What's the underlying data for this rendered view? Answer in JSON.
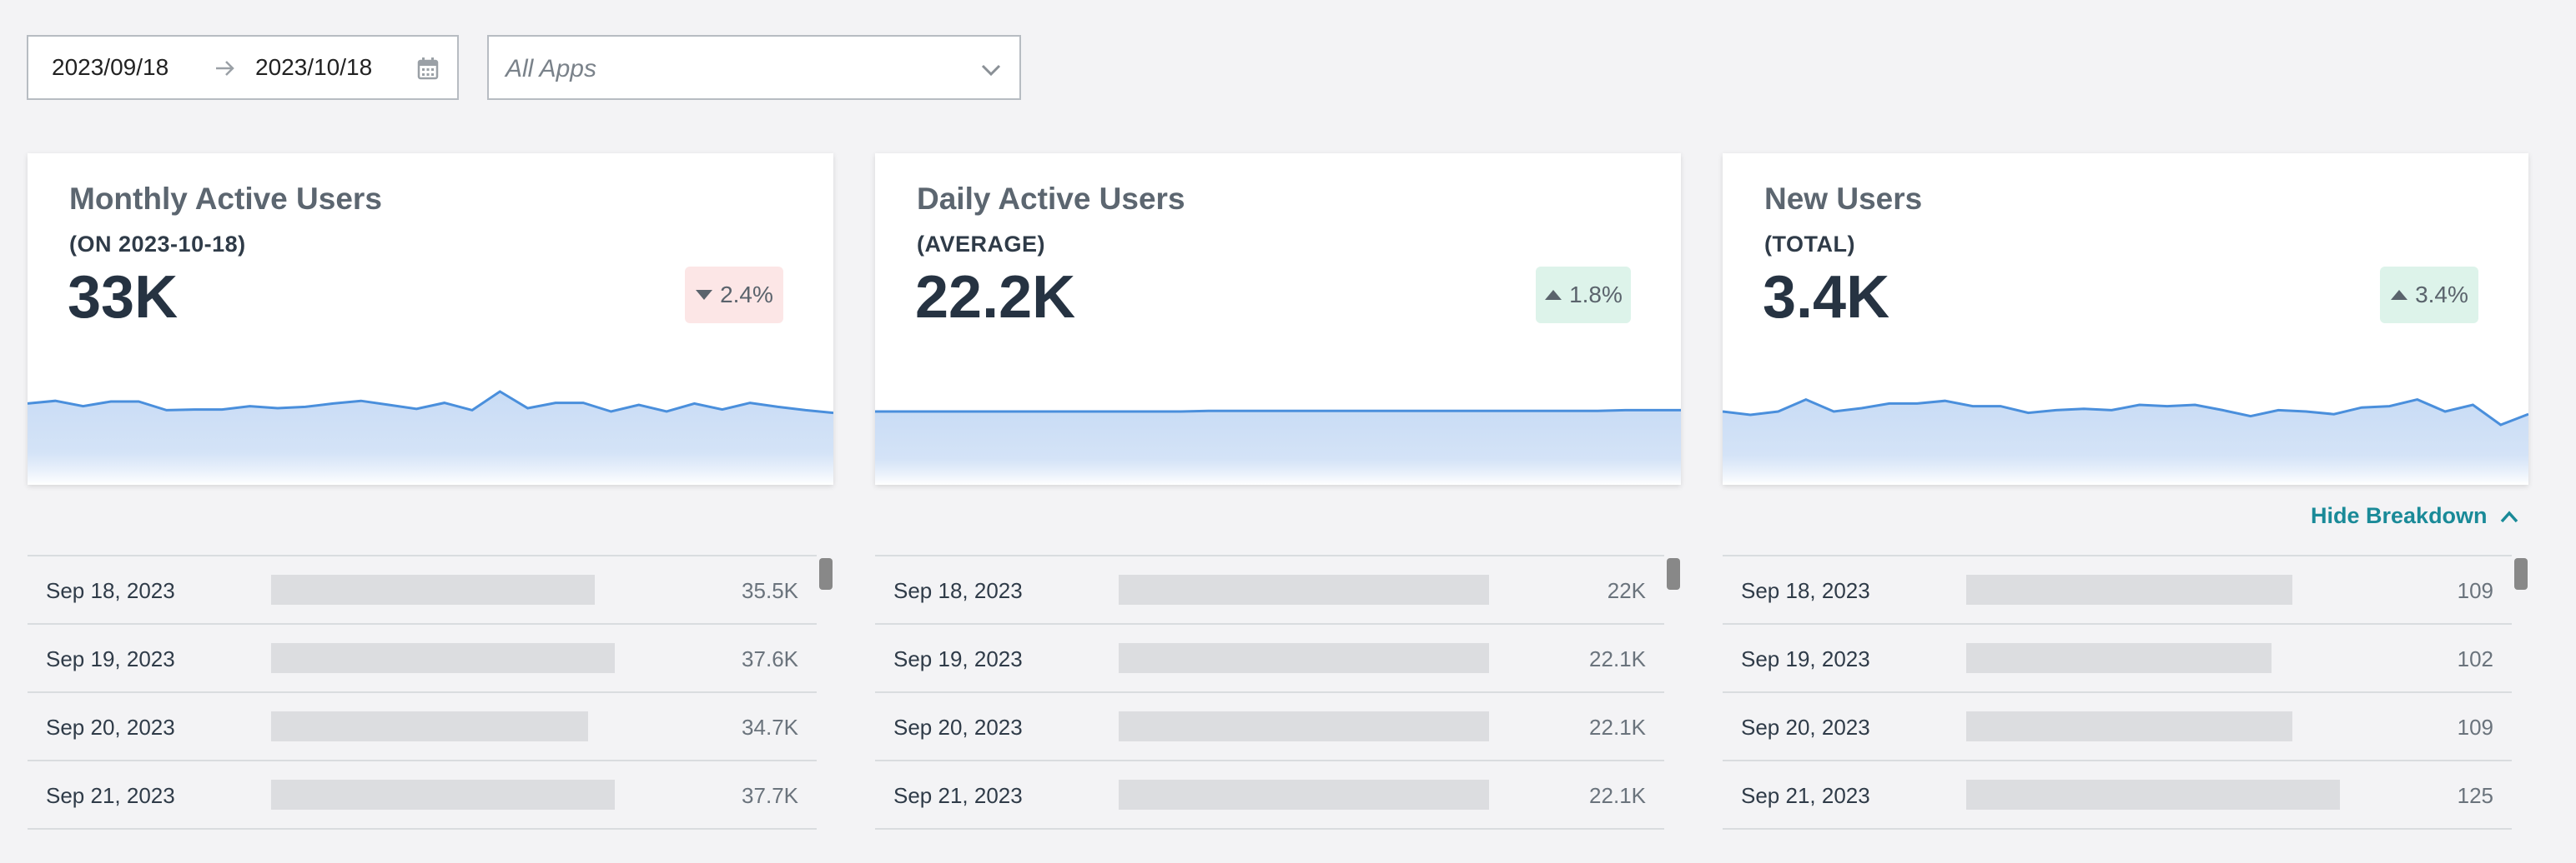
{
  "filters": {
    "date_start": "2023/09/18",
    "date_end": "2023/10/18",
    "app_select": "All Apps"
  },
  "colors": {
    "accent": "#1a8a98",
    "line": "#4a8fdc",
    "fill": "#c9dcf5",
    "badge_down": "#fce6e6",
    "badge_up": "#ddf3ea"
  },
  "cards": [
    {
      "title": "Monthly Active Users",
      "subtitle": "(ON 2023-10-18)",
      "value": "33K",
      "change": "2.4%",
      "trend": "down",
      "sparkline": [
        0.62,
        0.66,
        0.58,
        0.65,
        0.65,
        0.52,
        0.53,
        0.53,
        0.58,
        0.55,
        0.57,
        0.62,
        0.66,
        0.6,
        0.54,
        0.63,
        0.52,
        0.8,
        0.55,
        0.63,
        0.63,
        0.5,
        0.6,
        0.5,
        0.62,
        0.53,
        0.63,
        0.57,
        0.52,
        0.48
      ]
    },
    {
      "title": "Daily Active Users",
      "subtitle": "(AVERAGE)",
      "value": "22.2K",
      "change": "1.8%",
      "trend": "up",
      "sparkline": [
        0.5,
        0.5,
        0.5,
        0.5,
        0.5,
        0.5,
        0.5,
        0.5,
        0.5,
        0.5,
        0.5,
        0.5,
        0.51,
        0.51,
        0.51,
        0.51,
        0.51,
        0.51,
        0.51,
        0.51,
        0.51,
        0.51,
        0.51,
        0.51,
        0.51,
        0.51,
        0.51,
        0.52,
        0.52,
        0.52
      ]
    },
    {
      "title": "New Users",
      "subtitle": "(TOTAL)",
      "value": "3.4K",
      "change": "3.4%",
      "trend": "up",
      "sparkline": [
        0.5,
        0.45,
        0.5,
        0.68,
        0.5,
        0.55,
        0.62,
        0.62,
        0.66,
        0.58,
        0.58,
        0.48,
        0.52,
        0.54,
        0.52,
        0.6,
        0.58,
        0.6,
        0.52,
        0.43,
        0.52,
        0.5,
        0.46,
        0.56,
        0.58,
        0.68,
        0.5,
        0.6,
        0.3,
        0.46
      ]
    }
  ],
  "breakdown_toggle": "Hide Breakdown",
  "breakdowns": [
    [
      {
        "date": "Sep 18, 2023",
        "value": "35.5K",
        "fraction": 0.942
      },
      {
        "date": "Sep 19, 2023",
        "value": "37.6K",
        "fraction": 1.0
      },
      {
        "date": "Sep 20, 2023",
        "value": "34.7K",
        "fraction": 0.923
      },
      {
        "date": "Sep 21, 2023",
        "value": "37.7K",
        "fraction": 1.0
      }
    ],
    [
      {
        "date": "Sep 18, 2023",
        "value": "22K",
        "fraction": 1.0
      },
      {
        "date": "Sep 19, 2023",
        "value": "22.1K",
        "fraction": 1.0
      },
      {
        "date": "Sep 20, 2023",
        "value": "22.1K",
        "fraction": 1.0
      },
      {
        "date": "Sep 21, 2023",
        "value": "22.1K",
        "fraction": 1.0
      }
    ],
    [
      {
        "date": "Sep 18, 2023",
        "value": "109",
        "fraction": 0.872
      },
      {
        "date": "Sep 19, 2023",
        "value": "102",
        "fraction": 0.816
      },
      {
        "date": "Sep 20, 2023",
        "value": "109",
        "fraction": 0.872
      },
      {
        "date": "Sep 21, 2023",
        "value": "125",
        "fraction": 1.0
      }
    ]
  ]
}
